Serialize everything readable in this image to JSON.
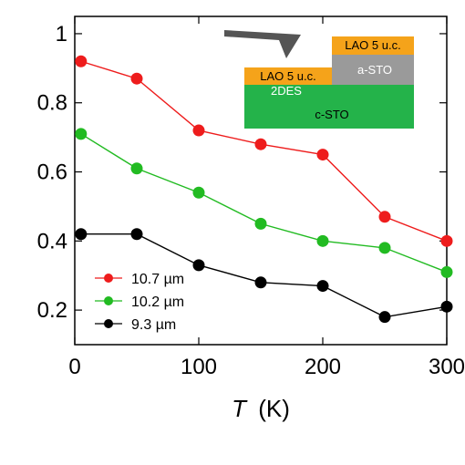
{
  "chart_data": {
    "type": "line",
    "xlabel_var": "T",
    "xlabel_unit": "(K)",
    "xlim": [
      0,
      300
    ],
    "ylim": [
      0.1,
      1.05
    ],
    "x_ticks": [
      "0",
      "100",
      "200",
      "300"
    ],
    "y_ticks": [
      "0.2",
      "0.4",
      "0.6",
      "0.8",
      "1"
    ],
    "x_tick_values": [
      0,
      100,
      200,
      300
    ],
    "y_tick_values": [
      0.2,
      0.4,
      0.6,
      0.8,
      1.0
    ],
    "grid": false,
    "legend_position": "bottom-left",
    "series": [
      {
        "name": "10.7 µm",
        "color": "#ee1c1c",
        "x": [
          5,
          50,
          100,
          150,
          200,
          250,
          300
        ],
        "y": [
          0.92,
          0.87,
          0.72,
          0.68,
          0.65,
          0.47,
          0.4
        ]
      },
      {
        "name": "10.2 µm",
        "color": "#22bb22",
        "x": [
          5,
          50,
          100,
          150,
          200,
          250,
          300
        ],
        "y": [
          0.71,
          0.61,
          0.54,
          0.45,
          0.4,
          0.38,
          0.31
        ]
      },
      {
        "name": "9.3 µm",
        "color": "#000000",
        "x": [
          5,
          50,
          100,
          150,
          200,
          250,
          300
        ],
        "y": [
          0.42,
          0.42,
          0.33,
          0.28,
          0.27,
          0.18,
          0.21
        ]
      }
    ],
    "inset": {
      "left_top_label": "LAO 5 u.c.",
      "left_mid_label": "2DES",
      "bottom_label": "c-STO",
      "right_top_label": "LAO 5 u.c.",
      "right_mid_label": "a-STO",
      "colors": {
        "lao": "#f5a31a",
        "two_des": "#1f3fa8",
        "c_sto": "#24b34a",
        "a_sto": "#9a9a9a",
        "tip": "#555555"
      }
    }
  }
}
